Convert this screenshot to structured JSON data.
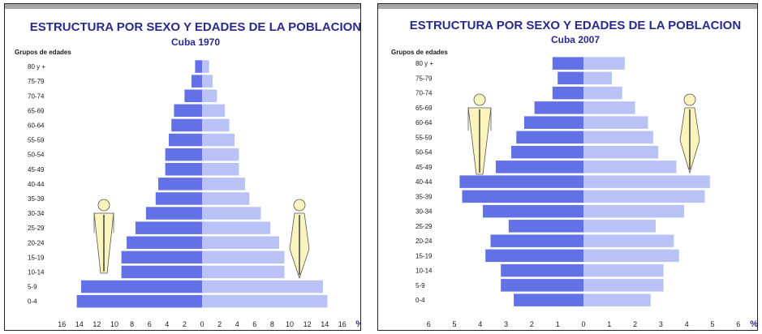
{
  "chart_data": [
    {
      "type": "bar",
      "title": "ESTRUCTURA POR SEXO Y EDADES DE LA POBLACION",
      "subtitle": "Cuba 1970",
      "ylabel": "Grupos de edades",
      "unit": "%",
      "categories": [
        "80 y +",
        "75-79",
        "70-74",
        "65-69",
        "60-64",
        "55-59",
        "50-54",
        "45-49",
        "40-44",
        "35-39",
        "30-34",
        "25-29",
        "20-24",
        "15-19",
        "10-14",
        "5-9",
        "0-4"
      ],
      "xticks": [
        "16",
        "14",
        "12",
        "10",
        "8",
        "6",
        "4",
        "2",
        "0",
        "2",
        "4",
        "6",
        "8",
        "10",
        "12",
        "14",
        "16"
      ],
      "xlim": [
        -16,
        16
      ],
      "series": [
        {
          "name": "",
          "side": "left",
          "color": "#6272e6",
          "values": [
            0.8,
            1.2,
            2.0,
            3.2,
            3.5,
            3.8,
            4.2,
            4.2,
            5.0,
            5.3,
            6.4,
            7.6,
            8.6,
            9.2,
            9.2,
            13.8,
            14.3
          ]
        },
        {
          "name": "",
          "side": "right",
          "color": "#b8c2f5",
          "values": [
            0.8,
            1.2,
            1.7,
            2.6,
            3.1,
            3.7,
            4.2,
            4.2,
            4.9,
            5.4,
            6.7,
            7.8,
            8.8,
            9.4,
            9.4,
            13.8,
            14.3
          ]
        }
      ],
      "figure_colors": {
        "male": "#fbf4bc",
        "female": "#fbf4bc"
      }
    },
    {
      "type": "bar",
      "title": "ESTRUCTURA POR SEXO Y EDADES DE LA POBLACION",
      "subtitle": "Cuba 2007",
      "ylabel": "Grupos de edades",
      "unit": "%",
      "categories": [
        "80 y +",
        "75-79",
        "70-74",
        "65-69",
        "60-64",
        "55-59",
        "50-54",
        "45-49",
        "40-44",
        "35-39",
        "30-34",
        "25-29",
        "20-24",
        "15-19",
        "10-14",
        "5-9",
        "0-4"
      ],
      "xticks": [
        "6",
        "5",
        "4",
        "3",
        "2",
        "1",
        "0",
        "1",
        "2",
        "3",
        "4",
        "5",
        "6"
      ],
      "xlim": [
        -6,
        6
      ],
      "series": [
        {
          "name": "",
          "side": "left",
          "color": "#6272e6",
          "values": [
            1.2,
            1.0,
            1.2,
            1.9,
            2.3,
            2.6,
            2.8,
            3.4,
            4.8,
            4.7,
            3.9,
            2.9,
            3.6,
            3.8,
            3.2,
            3.2,
            2.7
          ]
        },
        {
          "name": "",
          "side": "right",
          "color": "#b8c2f5",
          "values": [
            1.6,
            1.1,
            1.5,
            2.0,
            2.5,
            2.7,
            2.9,
            3.6,
            4.9,
            4.7,
            3.9,
            2.8,
            3.5,
            3.7,
            3.1,
            3.1,
            2.6
          ]
        }
      ],
      "figure_colors": {
        "male": "#fbf4bc",
        "female": "#fbf4bc"
      }
    }
  ]
}
